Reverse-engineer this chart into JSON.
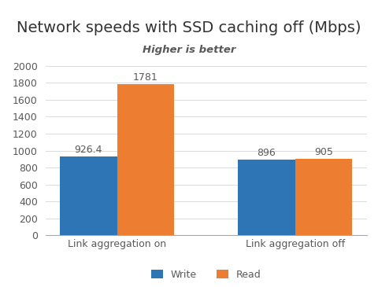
{
  "title": "Network speeds with SSD caching off (Mbps)",
  "subtitle": "Higher is better",
  "categories": [
    "Link aggregation on",
    "Link aggregation off"
  ],
  "series": [
    {
      "name": "Write",
      "values": [
        926.4,
        896
      ],
      "color": "#2E75B6"
    },
    {
      "name": "Read",
      "values": [
        1781,
        905
      ],
      "color": "#ED7D31"
    }
  ],
  "ylim": [
    0,
    2100
  ],
  "yticks": [
    0,
    200,
    400,
    600,
    800,
    1000,
    1200,
    1400,
    1600,
    1800,
    2000
  ],
  "bar_width": 0.32,
  "title_fontsize": 14,
  "subtitle_fontsize": 9.5,
  "tick_fontsize": 9,
  "legend_fontsize": 9,
  "value_fontsize": 9,
  "background_color": "#FFFFFF",
  "axis_color": "#595959",
  "title_color": "#333333"
}
